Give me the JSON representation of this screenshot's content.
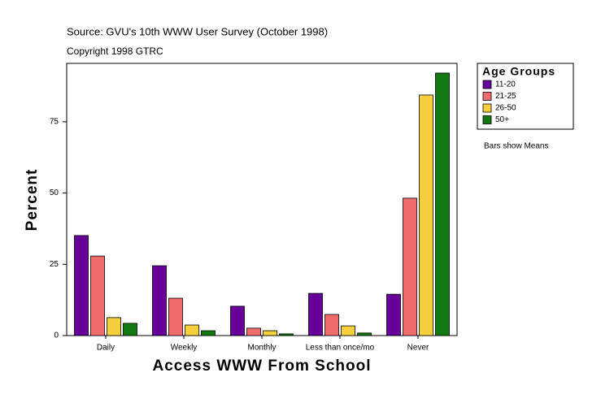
{
  "chart_data": {
    "type": "bar",
    "title": "Source: GVU's 10th WWW User Survey (October 1998)",
    "subtitle": "Copyright 1998 GTRC",
    "x_label": "Access WWW From School",
    "y_label": "Percent",
    "legend_title": "Age Groups",
    "annotation": "Bars show Means",
    "categories": [
      "Daily",
      "Weekly",
      "Monthly",
      "Less than once/mo",
      "Never"
    ],
    "series": [
      {
        "name": "11-20",
        "color": "#660099",
        "values": [
          35.1,
          24.5,
          10.3,
          14.8,
          14.5
        ]
      },
      {
        "name": "21-25",
        "color": "#ee6b6e",
        "values": [
          27.9,
          13.1,
          2.6,
          7.4,
          48.2
        ]
      },
      {
        "name": "26-50",
        "color": "#f6cf3f",
        "values": [
          6.3,
          3.7,
          1.7,
          3.4,
          84.4
        ]
      },
      {
        "name": "50+",
        "color": "#137a13",
        "values": [
          4.3,
          1.7,
          0.6,
          0.9,
          92.1
        ]
      }
    ],
    "ylim": [
      0,
      95.5
    ],
    "yticks": [
      0,
      25,
      50,
      75
    ],
    "legend_position": "right"
  }
}
